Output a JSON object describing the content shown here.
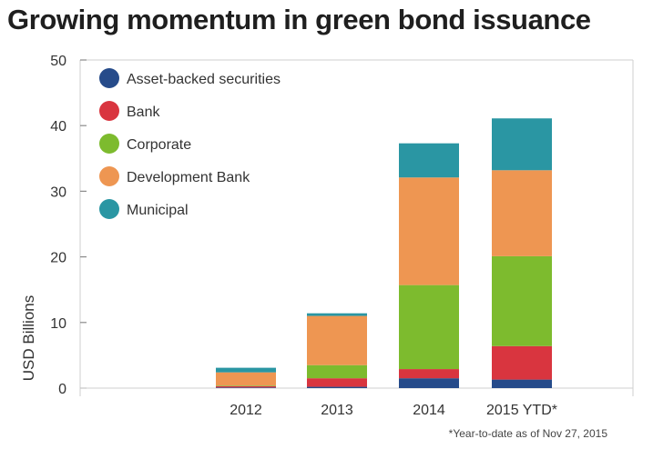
{
  "chart_data": {
    "type": "bar",
    "stacked": true,
    "title": "Growing momentum in green bond issuance",
    "ylabel": "USD Billions",
    "xlabel": "",
    "ylim": [
      0,
      50
    ],
    "yticks": [
      0,
      10,
      20,
      30,
      40,
      50
    ],
    "categories": [
      "2012",
      "2013",
      "2014",
      "2015 YTD*"
    ],
    "series": [
      {
        "name": "Asset-backed securities",
        "color": "#264b8a",
        "values": [
          0.1,
          0.2,
          1.5,
          1.3
        ]
      },
      {
        "name": "Bank",
        "color": "#d9353f",
        "values": [
          0.2,
          1.3,
          1.4,
          5.1
        ]
      },
      {
        "name": "Corporate",
        "color": "#7dbb2e",
        "values": [
          0.1,
          2.0,
          12.8,
          13.7
        ]
      },
      {
        "name": "Development Bank",
        "color": "#ee9652",
        "values": [
          2.0,
          7.5,
          16.4,
          13.1
        ]
      },
      {
        "name": "Municipal",
        "color": "#2a96a3",
        "values": [
          0.7,
          0.4,
          5.2,
          7.9
        ]
      }
    ],
    "legend_position": "top-left",
    "grid": false,
    "footnote": "*Year-to-date as of Nov 27, 2015"
  }
}
